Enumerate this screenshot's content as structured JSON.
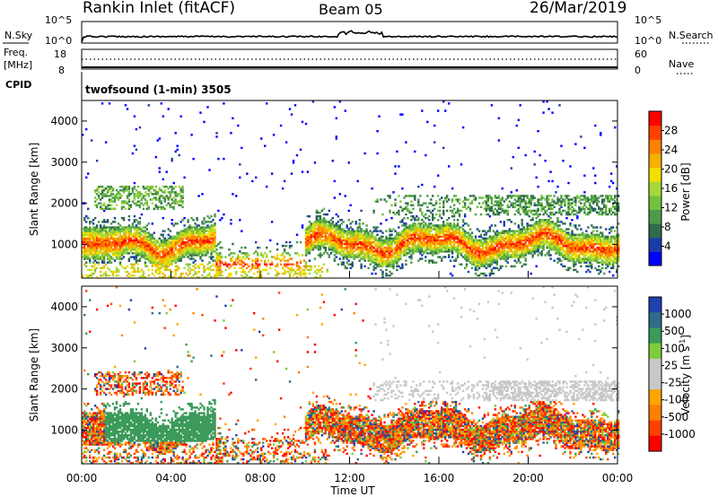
{
  "header": {
    "station": "Rankin Inlet (fitACF)",
    "beam": "Beam 05",
    "date": "26/Mar/2019"
  },
  "summary_panels": {
    "nsky_label": "N.Sky",
    "nsky_ticks": [
      "10^5",
      "10^0"
    ],
    "nsearch_label": "N.Search",
    "nsearch_ticks": [
      "10^5",
      "10^0"
    ],
    "freq_label_top": "Freq.",
    "freq_label_bottom": "[MHz]",
    "freq_ticks": [
      "18",
      "8"
    ],
    "nave_label": "Nave",
    "nave_ticks": [
      "60",
      "0"
    ],
    "cpid_label": "CPID",
    "cpid_text": "twofsound (1-min) 3505"
  },
  "colors": {
    "power_scale": [
      "#0000ff",
      "#1a3caa",
      "#2f6b4c",
      "#4f9a4a",
      "#72c23e",
      "#a9d83a",
      "#f0e000",
      "#f5b000",
      "#ff8000",
      "#ff4000",
      "#ff0000"
    ],
    "velocity_scale": [
      "#ff0000",
      "#ff4000",
      "#ff8000",
      "#ffa500",
      "#c8c8c8",
      "#c8c8c8",
      "#7ccd3c",
      "#3c9a5a",
      "#2f6b8a",
      "#2040b0"
    ]
  },
  "chart_data": [
    {
      "type": "heatmap",
      "name": "power",
      "ylabel": "Slant Range [km]",
      "ylim": [
        180,
        4500
      ],
      "xlim_hours": [
        0,
        24
      ],
      "yticks": [
        "1000",
        "2000",
        "3000",
        "4000"
      ],
      "colorbar": {
        "label": "Power [dB]",
        "ticks": [
          "4",
          "8",
          "12",
          "16",
          "20",
          "24",
          "28"
        ]
      }
    },
    {
      "type": "heatmap",
      "name": "velocity",
      "ylabel": "Slant Range [km]",
      "ylim": [
        180,
        4500
      ],
      "xlim_hours": [
        0,
        24
      ],
      "yticks": [
        "1000",
        "2000",
        "3000",
        "4000"
      ],
      "xticks": [
        "00:00",
        "04:00",
        "08:00",
        "12:00",
        "16:00",
        "20:00",
        "00:00"
      ],
      "xlabel": "Time UT",
      "colorbar": {
        "label": "Velocity [m s",
        "label_sup": "-1",
        "label_end": "]",
        "ticks": [
          "1000",
          "500",
          "100",
          "25",
          "-25",
          "-100",
          "-500",
          "-1000"
        ]
      }
    }
  ]
}
